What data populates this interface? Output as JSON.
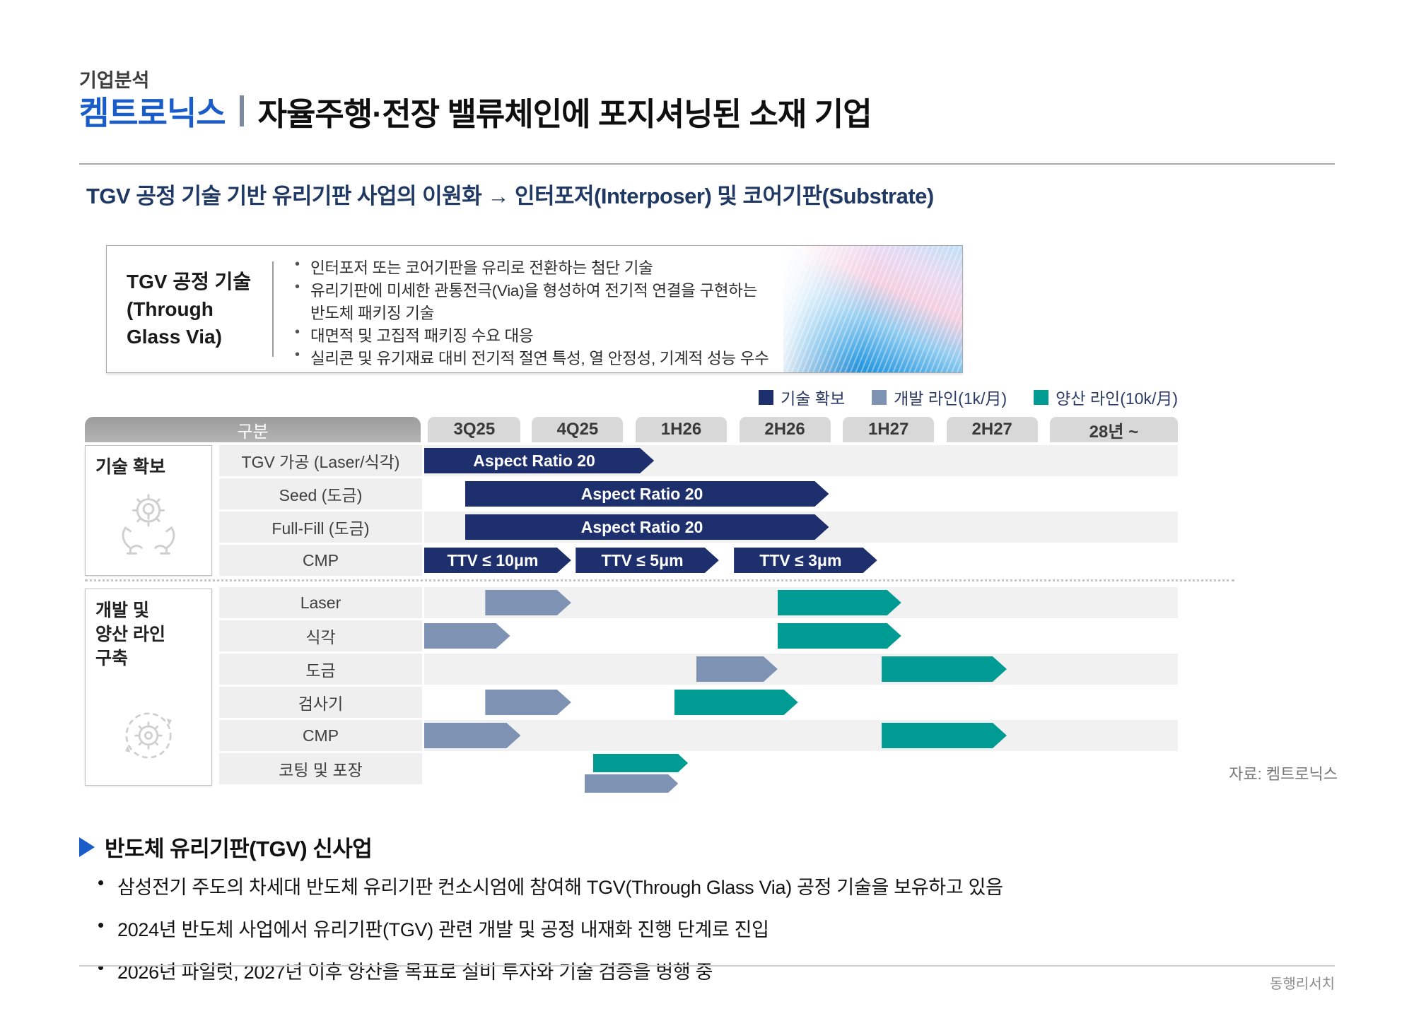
{
  "header": {
    "eyebrow": "기업분석",
    "company": "켐트로닉스",
    "title": "자율주행·전장 밸류체인에 포지셔닝된 소재 기업"
  },
  "section": {
    "title": "TGV 공정 기술 기반 유리기판 사업의 이원화 → 인터포저(Interposer) 및 코어기판(Substrate)"
  },
  "info_box": {
    "label": "TGV 공정 기술\n(Through\nGlass Via)",
    "bullets": [
      "인터포저 또는 코어기판을 유리로 전환하는 첨단 기술",
      "유리기판에 미세한 관통전극(Via)을 형성하여 전기적 연결을 구현하는 반도체 패키징 기술",
      "대면적 및 고집적 패키징 수요 대응",
      "실리콘 및 유기재료 대비 전기적 절연 특성, 열 안정성, 기계적 성능 우수"
    ],
    "image": "glass-substrate-photo"
  },
  "colors": {
    "tech": "#1d2f6d",
    "dev": "#7e92b4",
    "mass": "#009c94",
    "brand_blue": "#1a5cc8",
    "navy_title": "#1f3864"
  },
  "chart_data": {
    "type": "gantt",
    "corner_label": "구분",
    "columns": [
      "3Q25",
      "4Q25",
      "1H26",
      "2H26",
      "1H27",
      "2H27",
      "28년 ~"
    ],
    "legend": [
      {
        "label": "기술 확보",
        "type": "tech",
        "color": "#1d2f6d"
      },
      {
        "label": "개발 라인(1k/月)",
        "type": "dev",
        "color": "#7e92b4"
      },
      {
        "label": "양산 라인(10k/月)",
        "type": "mass",
        "color": "#009c94"
      }
    ],
    "groups": [
      {
        "label": "기술 확보",
        "icon": "hands-gear-icon",
        "rows": [
          {
            "label": "TGV 가공 (Laser/식각)",
            "bars": [
              {
                "type": "tech",
                "start": 0,
                "end": 30.5,
                "text": "Aspect Ratio 20"
              }
            ]
          },
          {
            "label": "Seed (도금)",
            "bars": [
              {
                "type": "tech",
                "start": 5.4,
                "end": 53.7,
                "text": "Aspect Ratio 20"
              }
            ]
          },
          {
            "label": "Full-Fill (도금)",
            "bars": [
              {
                "type": "tech",
                "start": 5.4,
                "end": 53.7,
                "text": "Aspect Ratio 20"
              }
            ]
          },
          {
            "label": "CMP",
            "bars": [
              {
                "type": "tech",
                "start": 0,
                "end": 19.5,
                "text": "TTV ≤ 10μm"
              },
              {
                "type": "tech",
                "start": 20.1,
                "end": 39.1,
                "text": "TTV ≤ 5μm"
              },
              {
                "type": "tech",
                "start": 41.1,
                "end": 60.1,
                "text": "TTV ≤ 3μm"
              }
            ]
          }
        ]
      },
      {
        "label": "개발 및\n양산 라인\n구축",
        "icon": "gear-cycle-icon",
        "rows": [
          {
            "label": "Laser",
            "bars": [
              {
                "type": "dev",
                "start": 8.1,
                "end": 19.5
              },
              {
                "type": "mass",
                "start": 46.9,
                "end": 63.3
              }
            ]
          },
          {
            "label": "식각",
            "bars": [
              {
                "type": "dev",
                "start": 0,
                "end": 11.4
              },
              {
                "type": "mass",
                "start": 46.9,
                "end": 63.3
              }
            ]
          },
          {
            "label": "도금",
            "bars": [
              {
                "type": "dev",
                "start": 36.1,
                "end": 46.9
              },
              {
                "type": "mass",
                "start": 60.7,
                "end": 77.3
              }
            ]
          },
          {
            "label": "검사기",
            "bars": [
              {
                "type": "dev",
                "start": 8.1,
                "end": 19.5
              },
              {
                "type": "mass",
                "start": 33.2,
                "end": 49.6
              }
            ]
          },
          {
            "label": "CMP",
            "bars": [
              {
                "type": "dev",
                "start": 0,
                "end": 12.8
              },
              {
                "type": "mass",
                "start": 60.7,
                "end": 77.3
              }
            ]
          },
          {
            "label": "코팅 및 포장",
            "bars": [
              {
                "type": "mass",
                "start": 22.4,
                "end": 35.0,
                "small": true,
                "offset": "top"
              },
              {
                "type": "dev",
                "start": 21.3,
                "end": 33.7,
                "small": true,
                "offset": "bottom"
              }
            ]
          }
        ]
      }
    ]
  },
  "source": "자료: 켐트로닉스",
  "analysis": {
    "title": "반도체 유리기판(TGV) 신사업",
    "bullets": [
      "삼성전기 주도의 차세대 반도체 유리기판 컨소시엄에 참여해 TGV(Through Glass Via) 공정 기술을 보유하고 있음",
      "2024년 반도체 사업에서 유리기판(TGV) 관련 개발 및 공정 내재화 진행 단계로 진입",
      "2026년 파일럿, 2027년 이후 양산을 목표로 설비 투자와 기술 검증을 병행 중"
    ]
  },
  "footer": "동행리서치"
}
